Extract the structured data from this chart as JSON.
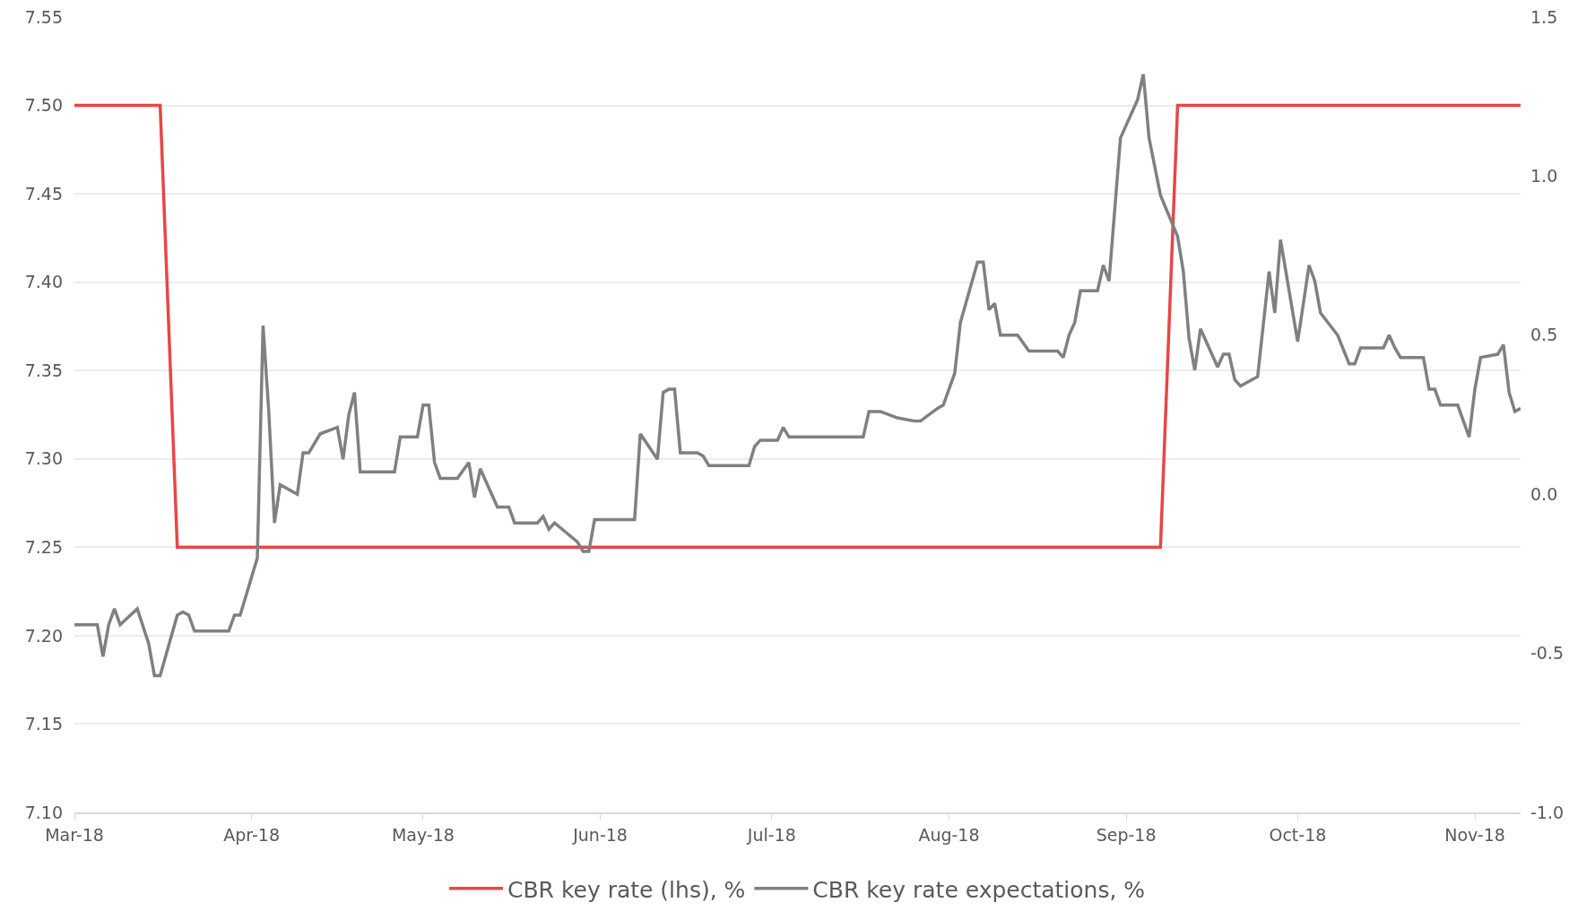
{
  "chart_data": {
    "type": "line",
    "x": [
      "2018-03-01",
      "2018-03-16",
      "2018-03-19",
      "2018-09-07",
      "2018-09-10",
      "2018-11-09"
    ],
    "series": [
      {
        "name": "CBR key rate (lhs), %",
        "color": "#e84646",
        "values": [
          7.5,
          7.5,
          7.25,
          7.25,
          7.5,
          7.5
        ]
      },
      {
        "name": "CBR key rate expectations, %",
        "color": "#808080",
        "axis": "y2",
        "x": [
          "2018-03-01",
          "2018-03-05",
          "2018-03-06",
          "2018-03-07",
          "2018-03-08",
          "2018-03-09",
          "2018-03-12",
          "2018-03-14",
          "2018-03-15",
          "2018-03-16",
          "2018-03-19",
          "2018-03-20",
          "2018-03-21",
          "2018-03-22",
          "2018-03-28",
          "2018-03-29",
          "2018-03-30",
          "2018-04-02",
          "2018-04-03",
          "2018-04-04",
          "2018-04-05",
          "2018-04-06",
          "2018-04-09",
          "2018-04-10",
          "2018-04-11",
          "2018-04-13",
          "2018-04-16",
          "2018-04-17",
          "2018-04-18",
          "2018-04-19",
          "2018-04-20",
          "2018-04-26",
          "2018-04-27",
          "2018-04-30",
          "2018-05-01",
          "2018-05-02",
          "2018-05-03",
          "2018-05-04",
          "2018-05-07",
          "2018-05-09",
          "2018-05-10",
          "2018-05-11",
          "2018-05-14",
          "2018-05-16",
          "2018-05-17",
          "2018-05-21",
          "2018-05-22",
          "2018-05-23",
          "2018-05-24",
          "2018-05-26",
          "2018-05-28",
          "2018-05-29",
          "2018-05-30",
          "2018-05-31",
          "2018-06-07",
          "2018-06-08",
          "2018-06-11",
          "2018-06-12",
          "2018-06-13",
          "2018-06-14",
          "2018-06-15",
          "2018-06-18",
          "2018-06-19",
          "2018-06-20",
          "2018-06-27",
          "2018-06-28",
          "2018-06-29",
          "2018-07-02",
          "2018-07-03",
          "2018-07-04",
          "2018-07-17",
          "2018-07-18",
          "2018-07-20",
          "2018-07-23",
          "2018-07-26",
          "2018-07-27",
          "2018-07-30",
          "2018-07-31",
          "2018-08-02",
          "2018-08-03",
          "2018-08-06",
          "2018-08-07",
          "2018-08-08",
          "2018-08-09",
          "2018-08-10",
          "2018-08-13",
          "2018-08-15",
          "2018-08-20",
          "2018-08-21",
          "2018-08-22",
          "2018-08-23",
          "2018-08-24",
          "2018-08-27",
          "2018-08-28",
          "2018-08-29",
          "2018-08-31",
          "2018-09-03",
          "2018-09-04",
          "2018-09-05",
          "2018-09-07",
          "2018-09-10",
          "2018-09-11",
          "2018-09-12",
          "2018-09-13",
          "2018-09-14",
          "2018-09-17",
          "2018-09-18",
          "2018-09-19",
          "2018-09-20",
          "2018-09-21",
          "2018-09-24",
          "2018-09-26",
          "2018-09-27",
          "2018-09-28",
          "2018-10-01",
          "2018-10-03",
          "2018-10-04",
          "2018-10-05",
          "2018-10-08",
          "2018-10-10",
          "2018-10-11",
          "2018-10-12",
          "2018-10-16",
          "2018-10-17",
          "2018-10-18",
          "2018-10-19",
          "2018-10-23",
          "2018-10-24",
          "2018-10-25",
          "2018-10-26",
          "2018-10-29",
          "2018-10-31",
          "2018-11-01",
          "2018-11-02",
          "2018-11-05",
          "2018-11-06",
          "2018-11-07",
          "2018-11-08",
          "2018-11-09"
        ],
        "values": [
          -0.41,
          -0.41,
          -0.51,
          -0.41,
          -0.36,
          -0.41,
          -0.36,
          -0.47,
          -0.57,
          -0.57,
          -0.38,
          -0.37,
          -0.38,
          -0.43,
          -0.43,
          -0.38,
          -0.38,
          -0.2,
          0.53,
          0.26,
          -0.09,
          0.03,
          0.0,
          0.13,
          0.13,
          0.19,
          0.21,
          0.11,
          0.25,
          0.32,
          0.07,
          0.07,
          0.18,
          0.18,
          0.28,
          0.28,
          0.1,
          0.05,
          0.05,
          0.1,
          -0.01,
          0.08,
          -0.04,
          -0.04,
          -0.09,
          -0.09,
          -0.07,
          -0.11,
          -0.09,
          -0.12,
          -0.15,
          -0.18,
          -0.18,
          -0.08,
          -0.08,
          0.19,
          0.11,
          0.32,
          0.33,
          0.33,
          0.13,
          0.13,
          0.12,
          0.09,
          0.09,
          0.15,
          0.17,
          0.17,
          0.21,
          0.18,
          0.18,
          0.26,
          0.26,
          0.24,
          0.23,
          0.23,
          0.27,
          0.28,
          0.38,
          0.54,
          0.73,
          0.73,
          0.58,
          0.6,
          0.5,
          0.5,
          0.45,
          0.45,
          0.43,
          0.5,
          0.54,
          0.64,
          0.64,
          0.72,
          0.67,
          1.12,
          1.24,
          1.32,
          1.12,
          0.94,
          0.81,
          0.7,
          0.49,
          0.39,
          0.52,
          0.4,
          0.44,
          0.44,
          0.36,
          0.34,
          0.37,
          0.7,
          0.57,
          0.8,
          0.48,
          0.72,
          0.67,
          0.57,
          0.5,
          0.41,
          0.41,
          0.46,
          0.46,
          0.5,
          0.46,
          0.43,
          0.43,
          0.33,
          0.33,
          0.28,
          0.28,
          0.18,
          0.33,
          0.43,
          0.44,
          0.47,
          0.32,
          0.26,
          0.27
        ]
      }
    ],
    "xlim": [
      "2018-03-01",
      "2018-11-09"
    ],
    "xticks": [
      {
        "value": "2018-03-01",
        "label": "Mar-18"
      },
      {
        "value": "2018-04-01",
        "label": "Apr-18"
      },
      {
        "value": "2018-05-01",
        "label": "May-18"
      },
      {
        "value": "2018-06-01",
        "label": "Jun-18"
      },
      {
        "value": "2018-07-01",
        "label": "Jul-18"
      },
      {
        "value": "2018-08-01",
        "label": "Aug-18"
      },
      {
        "value": "2018-09-01",
        "label": "Sep-18"
      },
      {
        "value": "2018-10-01",
        "label": "Oct-18"
      },
      {
        "value": "2018-11-01",
        "label": "Nov-18"
      }
    ],
    "ylim": [
      7.1,
      7.55
    ],
    "yticks": [
      {
        "value": 7.1,
        "label": "7.10"
      },
      {
        "value": 7.15,
        "label": "7.15"
      },
      {
        "value": 7.2,
        "label": "7.20"
      },
      {
        "value": 7.25,
        "label": "7.25"
      },
      {
        "value": 7.3,
        "label": "7.30"
      },
      {
        "value": 7.35,
        "label": "7.35"
      },
      {
        "value": 7.4,
        "label": "7.40"
      },
      {
        "value": 7.45,
        "label": "7.45"
      },
      {
        "value": 7.5,
        "label": "7.50"
      },
      {
        "value": 7.55,
        "label": "7.55"
      }
    ],
    "y2lim": [
      -1.0,
      1.5
    ],
    "y2ticks": [
      {
        "value": -1,
        "label": "-1.0"
      },
      {
        "value": -0.5,
        "label": "-0.5"
      },
      {
        "value": 0,
        "label": "0.0"
      },
      {
        "value": 0.5,
        "label": "0.5"
      },
      {
        "value": 1,
        "label": "1.0"
      },
      {
        "value": 1.5,
        "label": "1.5"
      }
    ],
    "grid": "y",
    "legend": "bottom",
    "marker": "none",
    "line_style": "solid"
  }
}
